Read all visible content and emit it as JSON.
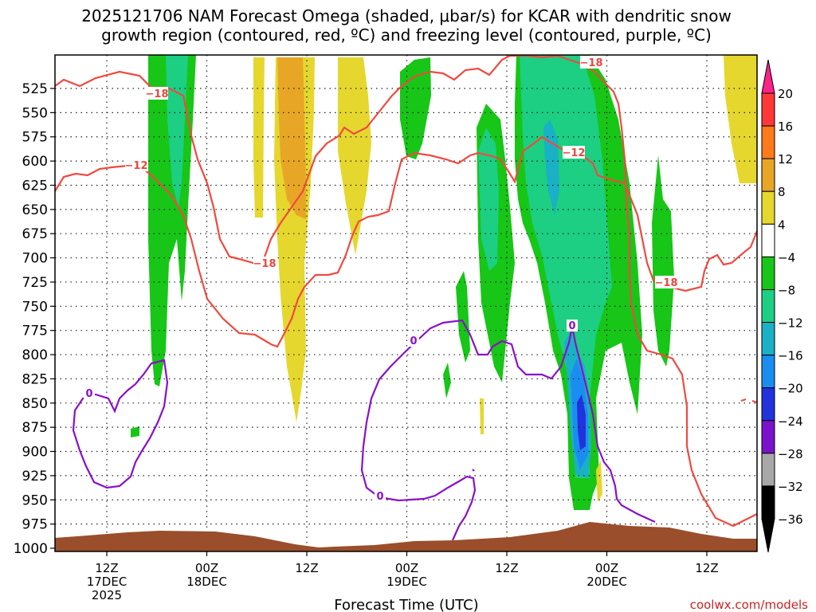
{
  "chart_data": {
    "type": "time-height contour",
    "title_line1": "2025121706 NAM Forecast Omega (shaded, μbar/s) for KCAR with dendritic snow",
    "title_line2": "growth region (contoured, red, ºC) and freezing level (contoured, purple, ºC)",
    "xlabel": "Forecast Time (UTC)",
    "y_axis": {
      "units": "hPa",
      "ticks": [
        525,
        550,
        575,
        600,
        625,
        650,
        675,
        700,
        725,
        750,
        775,
        800,
        825,
        850,
        875,
        900,
        925,
        950,
        975,
        1000
      ]
    },
    "x_axis": {
      "units": "forecast hour",
      "ticks": [
        {
          "hour": 6,
          "lines": [
            "12Z",
            "17DEC",
            "2025"
          ]
        },
        {
          "hour": 18,
          "lines": [
            "00Z",
            "18DEC"
          ]
        },
        {
          "hour": 30,
          "lines": [
            "12Z"
          ]
        },
        {
          "hour": 42,
          "lines": [
            "00Z",
            "19DEC"
          ]
        },
        {
          "hour": 54,
          "lines": [
            "12Z"
          ]
        },
        {
          "hour": 66,
          "lines": [
            "00Z",
            "20DEC"
          ]
        },
        {
          "hour": 78,
          "lines": [
            "12Z"
          ]
        }
      ]
    },
    "colorbar": {
      "levels": [
        "20",
        "16",
        "12",
        "8",
        "4",
        "−4",
        "−8",
        "−12",
        "−16",
        "−20",
        "−24",
        "−28",
        "−32",
        "−36"
      ],
      "colors": [
        "#ff2288",
        "#ff3838",
        "#ff7a1a",
        "#e8a626",
        "#e5d72e",
        "#ffffff",
        "#17c617",
        "#1ccf82",
        "#1ab0c6",
        "#1a8ef0",
        "#2233dd",
        "#7a12cc",
        "#a8a8a8",
        "#000000"
      ]
    },
    "contour_labels_red": [
      "−18",
      "−12",
      "−18",
      "−12",
      "−18",
      "−18"
    ],
    "contour_labels_purple": [
      "0",
      "0",
      "0",
      "0"
    ],
    "credit": "coolwx.com/models"
  }
}
